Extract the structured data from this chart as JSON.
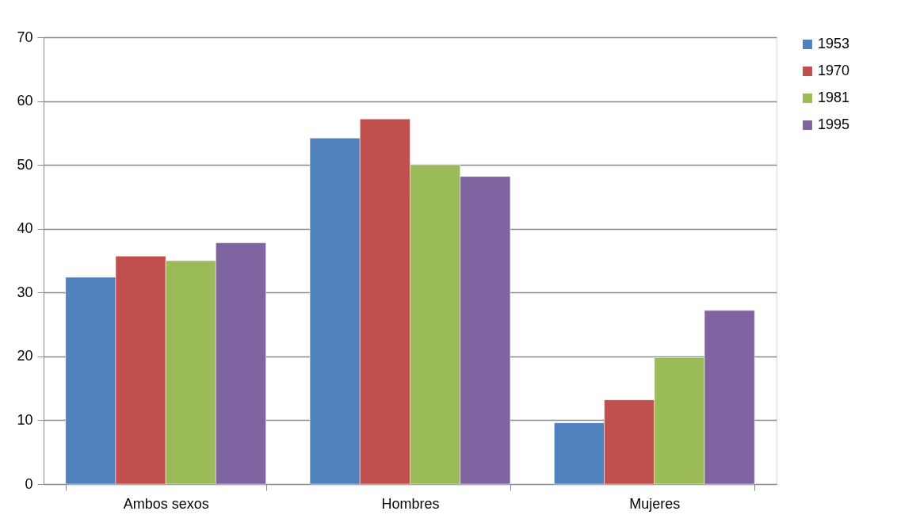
{
  "chart_data": {
    "type": "bar",
    "categories": [
      "Ambos sexos",
      "Hombres",
      "Mujeres"
    ],
    "series": [
      {
        "name": "1953",
        "color": "#4f81bd",
        "values": [
          32.4,
          54.2,
          9.6
        ]
      },
      {
        "name": "1970",
        "color": "#c0504d",
        "values": [
          35.7,
          57.2,
          13.2
        ]
      },
      {
        "name": "1981",
        "color": "#9bbb59",
        "values": [
          35.0,
          50.0,
          19.8
        ]
      },
      {
        "name": "1995",
        "color": "#8064a2",
        "values": [
          37.8,
          48.2,
          27.2
        ]
      }
    ],
    "ylim": [
      0,
      70
    ],
    "yticks": [
      0,
      10,
      20,
      30,
      40,
      50,
      60,
      70
    ],
    "grid": "y",
    "legend": "right"
  }
}
